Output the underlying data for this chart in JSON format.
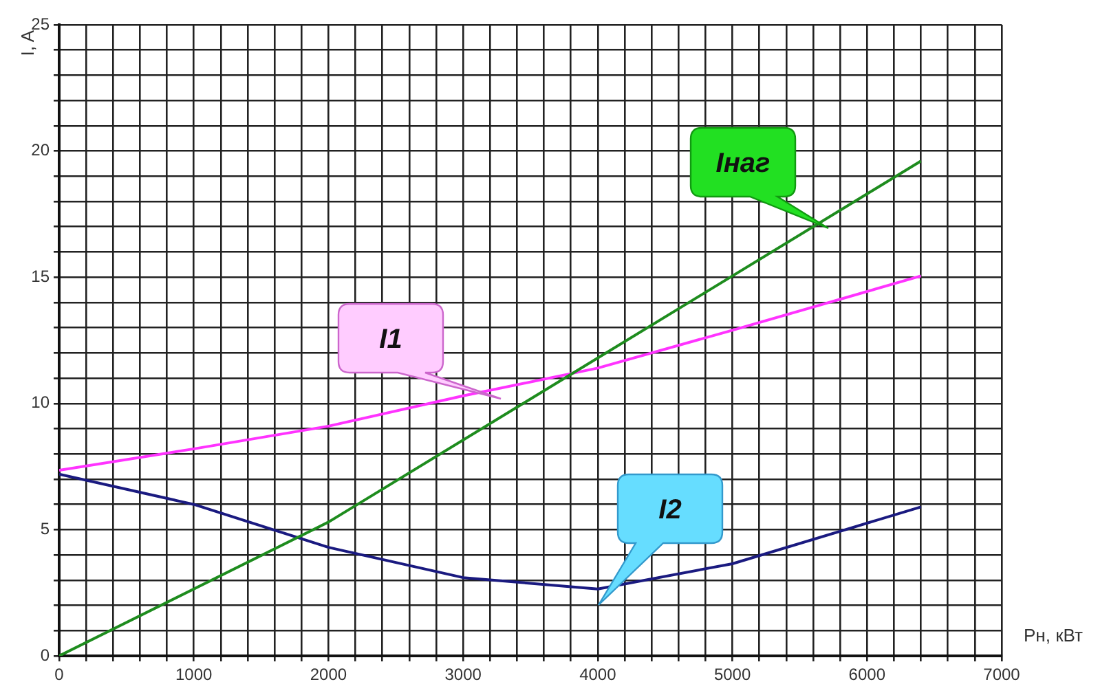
{
  "chart_data": {
    "type": "line",
    "xlabel": "Pн, кВт",
    "ylabel": "I, A",
    "xlim": [
      0,
      7000
    ],
    "ylim": [
      0,
      25
    ],
    "xticks": [
      0,
      {
        "value": 200,
        "label": null
      },
      {
        "value": 400,
        "label": null
      },
      {
        "value": 600,
        "label": null
      },
      {
        "value": 800,
        "label": null
      },
      1000,
      {
        "value": 1200,
        "label": null
      },
      {
        "value": 1400,
        "label": null
      },
      {
        "value": 1600,
        "label": null
      },
      {
        "value": 1800,
        "label": null
      },
      2000,
      {
        "value": 2200,
        "label": null
      },
      {
        "value": 2400,
        "label": null
      },
      {
        "value": 2600,
        "label": null
      },
      {
        "value": 2800,
        "label": null
      },
      3000,
      {
        "value": 3200,
        "label": null
      },
      {
        "value": 3400,
        "label": null
      },
      {
        "value": 3600,
        "label": null
      },
      {
        "value": 3800,
        "label": null
      },
      4000,
      {
        "value": 4200,
        "label": null
      },
      {
        "value": 4400,
        "label": null
      },
      {
        "value": 4600,
        "label": null
      },
      {
        "value": 4800,
        "label": null
      },
      5000,
      {
        "value": 5200,
        "label": null
      },
      {
        "value": 5400,
        "label": null
      },
      {
        "value": 5600,
        "label": null
      },
      {
        "value": 5800,
        "label": null
      },
      6000,
      {
        "value": 6200,
        "label": null
      },
      {
        "value": 6400,
        "label": null
      },
      {
        "value": 6600,
        "label": null
      },
      {
        "value": 6800,
        "label": null
      },
      7000
    ],
    "yticks": [
      0,
      {
        "value": 1,
        "label": null
      },
      {
        "value": 2,
        "label": null
      },
      {
        "value": 3,
        "label": null
      },
      {
        "value": 4,
        "label": null
      },
      5,
      {
        "value": 6,
        "label": null
      },
      {
        "value": 7,
        "label": null
      },
      {
        "value": 8,
        "label": null
      },
      {
        "value": 9,
        "label": null
      },
      10,
      {
        "value": 11,
        "label": null
      },
      {
        "value": 12,
        "label": null
      },
      {
        "value": 13,
        "label": null
      },
      {
        "value": 14,
        "label": null
      },
      15,
      {
        "value": 16,
        "label": null
      },
      {
        "value": 17,
        "label": null
      },
      {
        "value": 18,
        "label": null
      },
      {
        "value": 19,
        "label": null
      },
      20,
      {
        "value": 21,
        "label": null
      },
      {
        "value": 22,
        "label": null
      },
      {
        "value": 23,
        "label": null
      },
      {
        "value": 24,
        "label": null
      },
      25
    ],
    "grid": true,
    "legend": false,
    "marker": "none",
    "line_style": "solid",
    "series": [
      {
        "name": "Iнаг",
        "color": "#1e8c1e",
        "x": [
          0,
          2000,
          6400
        ],
        "values": [
          0,
          5.3,
          19.6
        ]
      },
      {
        "name": "I1",
        "color": "#ff33ff",
        "x": [
          0,
          1000,
          2000,
          3000,
          4000,
          5000,
          6400
        ],
        "values": [
          7.35,
          8.2,
          9.1,
          10.3,
          11.4,
          12.9,
          15.05
        ]
      },
      {
        "name": "I2",
        "color": "#1a1a80",
        "x": [
          0,
          1000,
          2000,
          3000,
          4000,
          5000,
          6400
        ],
        "values": [
          7.2,
          6.0,
          4.3,
          3.1,
          2.65,
          3.65,
          5.9
        ]
      }
    ]
  }
}
